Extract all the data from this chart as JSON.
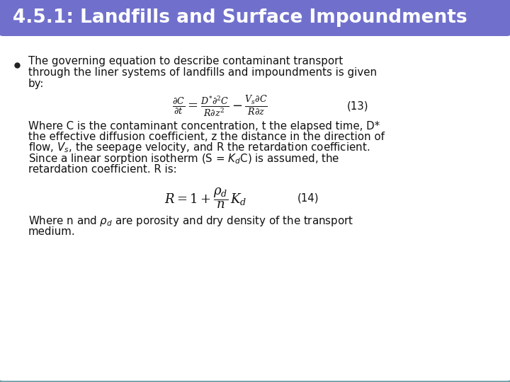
{
  "title": "4.5.1: Landfills and Surface Impoundments",
  "title_bg_color": "#7070cc",
  "title_text_color": "#ffffff",
  "body_bg_color": "#ffffff",
  "border_color": "#6b9ea8",
  "text_color": "#111111",
  "eq1_label": "(13)",
  "eq2_label": "(14)"
}
